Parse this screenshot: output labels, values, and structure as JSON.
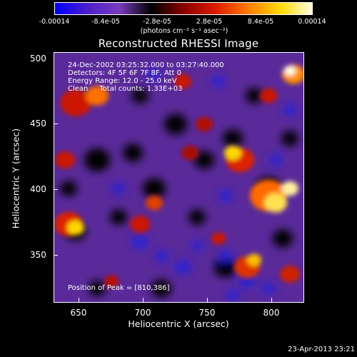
{
  "colorbar": {
    "ticks": [
      "-0.00014",
      "-8.4e-05",
      "-2.8e-05",
      "2.8e-05",
      "8.4e-05",
      "0.00014"
    ],
    "units": "(photons cm⁻² s⁻¹ asec⁻²)",
    "colors": [
      "#0000ff",
      "#4a1ec8",
      "#7a3cc0",
      "#000000",
      "#8b0000",
      "#dd1a00",
      "#ff7a00",
      "#ffd800",
      "#ffffe0"
    ]
  },
  "title": "Reconstructed RHESSI Image",
  "annotations": {
    "time": "24-Dec-2002 03:25:32.000 to 03:27:40.000",
    "detectors": "Detectors: 4F 5F 6F 7F 8F, Att 0",
    "energy": "Energy Range: 12.0 - 25.0 keV",
    "clean": "Clean     Total counts: 1.33E+03",
    "peak": "Position of Peak = [810,386]"
  },
  "axes": {
    "xlabel": "Heliocentric X (arcsec)",
    "ylabel": "Heliocentric Y (arcsec)",
    "xticks": [
      "650",
      "700",
      "750",
      "800"
    ],
    "yticks": [
      "500",
      "450",
      "400",
      "350"
    ],
    "xrange": [
      630,
      825
    ],
    "yrange": [
      308,
      503
    ]
  },
  "footer": {
    "date": "23-Apr-2013 23:21"
  }
}
